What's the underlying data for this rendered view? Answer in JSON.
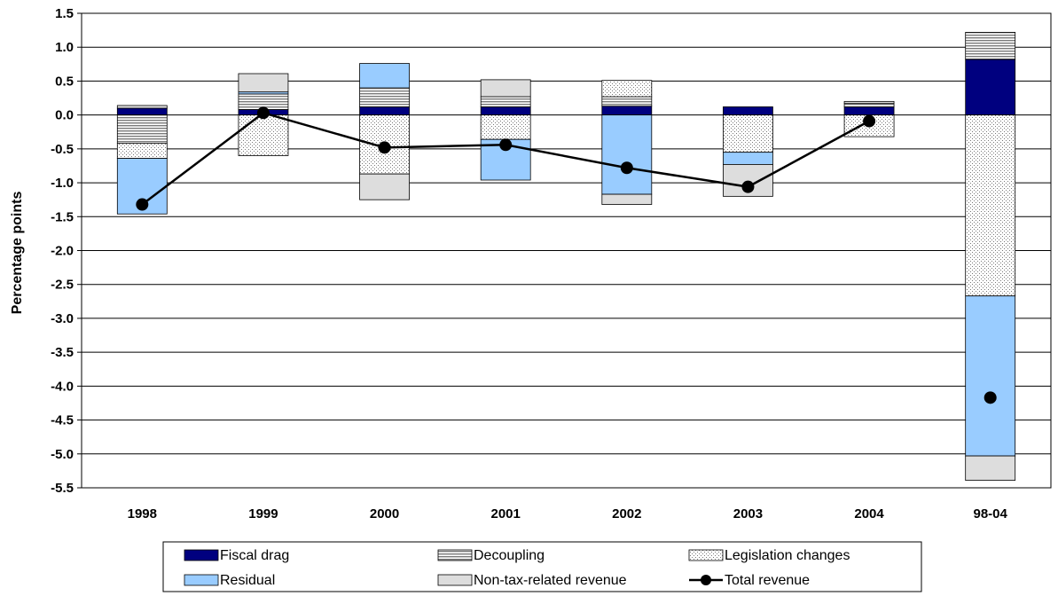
{
  "chart_data": {
    "type": "bar",
    "stacked": true,
    "ylabel": "Percentage points",
    "ylim": [
      -5.5,
      1.5
    ],
    "yticks": [
      1.5,
      1.0,
      0.5,
      0.0,
      -0.5,
      -1.0,
      -1.5,
      -2.0,
      -2.5,
      -3.0,
      -3.5,
      -4.0,
      -4.5,
      -5.0,
      -5.5
    ],
    "ytick_labels": [
      "1.5",
      "1.0",
      "0.5",
      "0.0",
      "-0.5",
      "-1.0",
      "-1.5",
      "-2.0",
      "-2.5",
      "-3.0",
      "-3.5",
      "-4.0",
      "-4.5",
      "-5.0",
      "-5.5"
    ],
    "categories": [
      "1998",
      "1999",
      "2000",
      "2001",
      "2002",
      "2003",
      "2004",
      "98-04"
    ],
    "grid": true,
    "legend_position": "bottom",
    "series": [
      {
        "name": "Fiscal drag",
        "kind": "bar",
        "pattern": "solid-navy",
        "color": "#00007f",
        "values": [
          0.1,
          0.08,
          0.12,
          0.12,
          0.13,
          0.12,
          0.12,
          0.82
        ]
      },
      {
        "name": "Decoupling",
        "kind": "bar",
        "pattern": "horizontal-lines",
        "color": "#808080",
        "values": [
          -0.42,
          0.23,
          0.28,
          0.15,
          0.14,
          0.0,
          0.05,
          0.4
        ]
      },
      {
        "name": "Legislation changes",
        "kind": "bar",
        "pattern": "dots",
        "color": "#ffffff",
        "values": [
          -0.22,
          -0.6,
          -0.87,
          -0.36,
          0.24,
          -0.55,
          -0.32,
          -2.67
        ]
      },
      {
        "name": "Residual",
        "kind": "bar",
        "pattern": "solid-lightblue",
        "color": "#99ccff",
        "values": [
          -0.82,
          0.03,
          0.36,
          -0.6,
          -1.17,
          -0.18,
          0.0,
          -2.36
        ]
      },
      {
        "name": "Non-tax-related revenue",
        "kind": "bar",
        "pattern": "solid-lightgray",
        "color": "#dddddd",
        "values": [
          0.04,
          0.27,
          -0.38,
          0.25,
          -0.15,
          -0.47,
          0.03,
          -0.36
        ]
      },
      {
        "name": "Total revenue",
        "kind": "line-marker",
        "color": "#000000",
        "values": [
          -1.32,
          0.03,
          -0.48,
          -0.44,
          -0.78,
          -1.06,
          -0.09,
          -4.17
        ],
        "connected_through": "2004"
      }
    ]
  }
}
